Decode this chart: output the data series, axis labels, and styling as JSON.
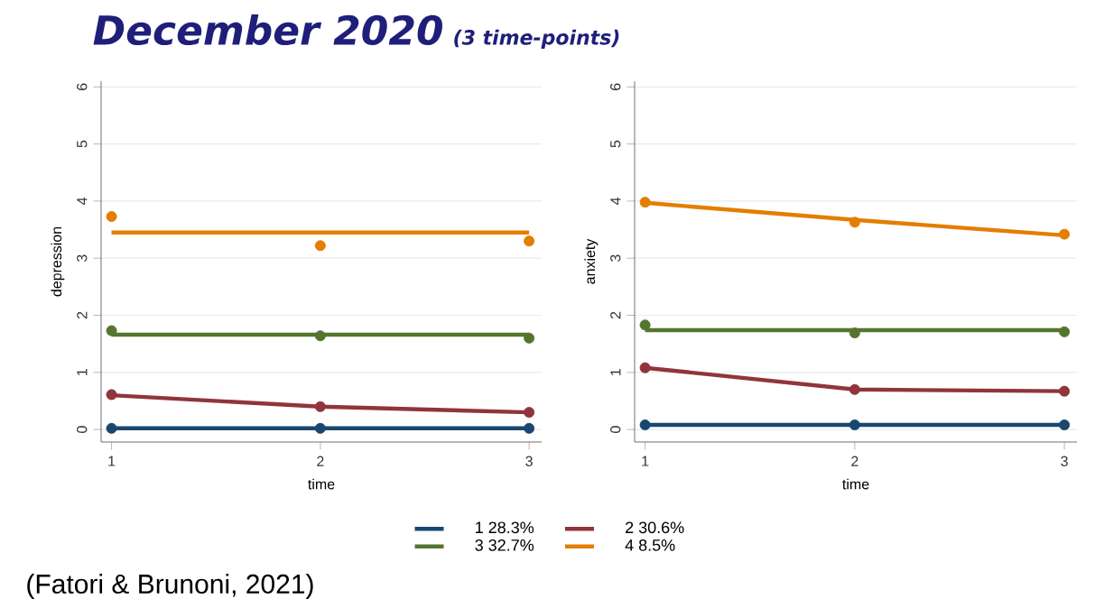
{
  "chart_data": [
    {
      "type": "line",
      "title": "December 2020",
      "subtitle": "(3 time-points)",
      "xlabel": "time",
      "ylabel": "depression",
      "x": [
        1,
        2,
        3
      ],
      "xlim": [
        0.95,
        3.06
      ],
      "ylim": [
        -0.22,
        6.1
      ],
      "xticks": [
        1,
        2,
        3
      ],
      "yticks": [
        0,
        1,
        2,
        3,
        4,
        5,
        6
      ],
      "grid": "y",
      "legend": "bottom",
      "annotations": [
        "(Fatori & Brunoni, 2021)"
      ],
      "series": [
        {
          "name": "1   28.3%",
          "type": "line",
          "color": "#1a476f",
          "values": [
            0.02,
            0.02,
            0.02
          ]
        },
        {
          "name": "2   30.6%",
          "type": "line",
          "color": "#90353b",
          "values": [
            0.6,
            0.4,
            0.3
          ]
        },
        {
          "name": "3   32.7%",
          "type": "line",
          "color": "#55752f",
          "values": [
            1.66,
            1.66,
            1.66
          ]
        },
        {
          "name": "4   8.5%",
          "type": "line",
          "color": "#e37e00",
          "values": [
            3.45,
            3.45,
            3.45
          ]
        },
        {
          "type": "scatter",
          "color": "#1a476f",
          "values": [
            0.02,
            0.02,
            0.02
          ]
        },
        {
          "type": "scatter",
          "color": "#90353b",
          "values": [
            0.61,
            0.4,
            0.3
          ]
        },
        {
          "type": "scatter",
          "color": "#55752f",
          "values": [
            1.73,
            1.64,
            1.6
          ]
        },
        {
          "type": "scatter",
          "color": "#e37e00",
          "values": [
            3.73,
            3.22,
            3.3
          ]
        }
      ]
    },
    {
      "type": "line",
      "xlabel": "time",
      "ylabel": "anxiety",
      "x": [
        1,
        2,
        3
      ],
      "xlim": [
        0.95,
        3.06
      ],
      "ylim": [
        -0.22,
        6.1
      ],
      "xticks": [
        1,
        2,
        3
      ],
      "yticks": [
        0,
        1,
        2,
        3,
        4,
        5,
        6
      ],
      "grid": "y",
      "series": [
        {
          "type": "line",
          "color": "#1a476f",
          "values": [
            0.08,
            0.08,
            0.08
          ]
        },
        {
          "type": "line",
          "color": "#90353b",
          "values": [
            1.08,
            0.7,
            0.67
          ]
        },
        {
          "type": "line",
          "color": "#55752f",
          "values": [
            1.74,
            1.74,
            1.74
          ]
        },
        {
          "type": "line",
          "color": "#e37e00",
          "values": [
            3.97,
            3.67,
            3.4
          ]
        },
        {
          "type": "scatter",
          "color": "#1a476f",
          "values": [
            0.08,
            0.08,
            0.08
          ]
        },
        {
          "type": "scatter",
          "color": "#90353b",
          "values": [
            1.08,
            0.7,
            0.67
          ]
        },
        {
          "type": "scatter",
          "color": "#55752f",
          "values": [
            1.83,
            1.69,
            1.71
          ]
        },
        {
          "type": "scatter",
          "color": "#e37e00",
          "values": [
            3.98,
            3.63,
            3.42
          ]
        }
      ]
    }
  ]
}
